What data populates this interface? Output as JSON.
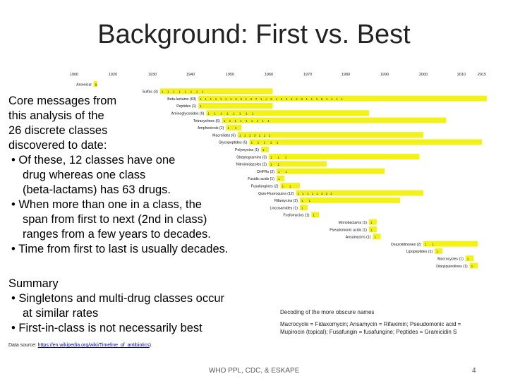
{
  "slide": {
    "title": "Background: First vs. Best",
    "footer": "WHO PPL, CDC, & ESKAPE",
    "page_number": "4"
  },
  "core_messages": {
    "intro_lines": [
      "Core messages from",
      "this analysis of the",
      "26 discrete classes",
      "discovered to date:"
    ],
    "bullets": [
      [
        "Of these, 12 classes have one",
        "drug whereas one class",
        "(beta-lactams) has 63 drugs."
      ],
      [
        "When more than one in a class, the",
        "span from first to next (2nd in class)",
        "ranges from a few years to decades."
      ],
      [
        "Time from first to last is usually decades."
      ]
    ]
  },
  "summary": {
    "heading": "Summary",
    "bullets": [
      [
        "Singletons and multi-drug classes occur",
        "at similar rates"
      ],
      [
        "First-in-class is not necessarily best"
      ]
    ]
  },
  "decoding": {
    "heading": "Decoding of the more obscure names",
    "lines": [
      "Macrocycle = Fidaxomycin; Ansamycin = Rifaximin; Pseudomonic acid =",
      "Mupirocin (topical); Fusafungin = fusafungine; Peptides = Gramicidin S"
    ]
  },
  "source": {
    "prefix": "Data source: ",
    "link": "https://en.wikipedia.org/wiki/Timeline_of_antibiotics",
    "suffix": ")."
  },
  "chart_data": {
    "type": "bar",
    "bar_color": "#f2f21a",
    "x_ticks": [
      1900,
      1920,
      1930,
      1940,
      1950,
      1960,
      1970,
      1980,
      1990,
      2000,
      2010,
      2015
    ],
    "x_tick_labels": [
      "1900",
      "1920",
      "1930",
      "1940",
      "1950",
      "1960",
      "1970",
      "1980",
      "1990",
      "2000",
      "2010",
      "2015"
    ],
    "xlim": [
      1900,
      2015
    ],
    "series": [
      {
        "label": "Arsenical",
        "start": 1910,
        "end": 1912,
        "marks": "1 1"
      },
      {
        "label": "Sulfas (3)",
        "start": 1932,
        "end": 1961,
        "marks": "1 1   1 1 1   1 1     1"
      },
      {
        "label": "Beta-lactams (63)",
        "start": 1942,
        "end": 2018,
        "marks": "1    1   1 1 1   1   1 2 2   1 2   7   1 < 5 1 3 3 2 2 3 1   1 1 5 1 1   1   1"
      },
      {
        "label": "Peptides (1)",
        "start": 1942,
        "end": 1961,
        "marks": "1"
      },
      {
        "label": "Aminoglycosides (9)",
        "start": 1944,
        "end": 1986,
        "marks": "1   1   1   1   1 1   1 1"
      },
      {
        "label": "Tetracyclines (6)",
        "start": 1948,
        "end": 2006,
        "marks": "1 1   1   1 1 1   1 1   1"
      },
      {
        "label": "Amphenicols (2)",
        "start": 1949,
        "end": 1953,
        "marks": "1   1"
      },
      {
        "label": "Macrolides (6)",
        "start": 1952,
        "end": 2000,
        "marks": "1 1   1 3 1 1   1"
      },
      {
        "label": "Glycopeptides (5)",
        "start": 1955,
        "end": 2015,
        "marks": "1   1   1   1 1"
      },
      {
        "label": "Polymyxins (1)",
        "start": 1958,
        "end": 1960,
        "marks": "1"
      },
      {
        "label": "Streptogramins (3)",
        "start": 1960,
        "end": 1999,
        "marks": "1   1   1"
      },
      {
        "label": "Nitroimidazoles (2)",
        "start": 1960,
        "end": 1975,
        "marks": "1   1"
      },
      {
        "label": "DHFRs (2)",
        "start": 1962,
        "end": 1990,
        "marks": "1   1"
      },
      {
        "label": "Fusidic acids (1)",
        "start": 1962,
        "end": 1964,
        "marks": "1"
      },
      {
        "label": "Fusafungines (2)",
        "start": 1963,
        "end": 1968,
        "marks": "1   1"
      },
      {
        "label": "Quin-Fluoroquins (12)",
        "start": 1967,
        "end": 2000,
        "marks": "1   1 1 1 1 3   2 2"
      },
      {
        "label": "Rifamycins (2)",
        "start": 1968,
        "end": 1994,
        "marks": "1   1"
      },
      {
        "label": "Lincosamides (1)",
        "start": 1968,
        "end": 1970,
        "marks": "1"
      },
      {
        "label": "Fosfomycins (1)",
        "start": 1971,
        "end": 1973,
        "marks": "1"
      },
      {
        "label": "Monobactams (1)",
        "start": 1986,
        "end": 1988,
        "marks": "1"
      },
      {
        "label": "Pseudomonic acids (1)",
        "start": 1986,
        "end": 1988,
        "marks": "1"
      },
      {
        "label": "Ansamycins (1)",
        "start": 1987,
        "end": 1989,
        "marks": "1"
      },
      {
        "label": "Oxazolidinones (2)",
        "start": 2000,
        "end": 2014,
        "marks": "1   1"
      },
      {
        "label": "Lipopeptides (1)",
        "start": 2003,
        "end": 2005,
        "marks": "1"
      },
      {
        "label": "Macrocycles (1)",
        "start": 2011,
        "end": 2013,
        "marks": "1"
      },
      {
        "label": "Diarylquinolines (1)",
        "start": 2012,
        "end": 2014,
        "marks": "1"
      }
    ]
  }
}
